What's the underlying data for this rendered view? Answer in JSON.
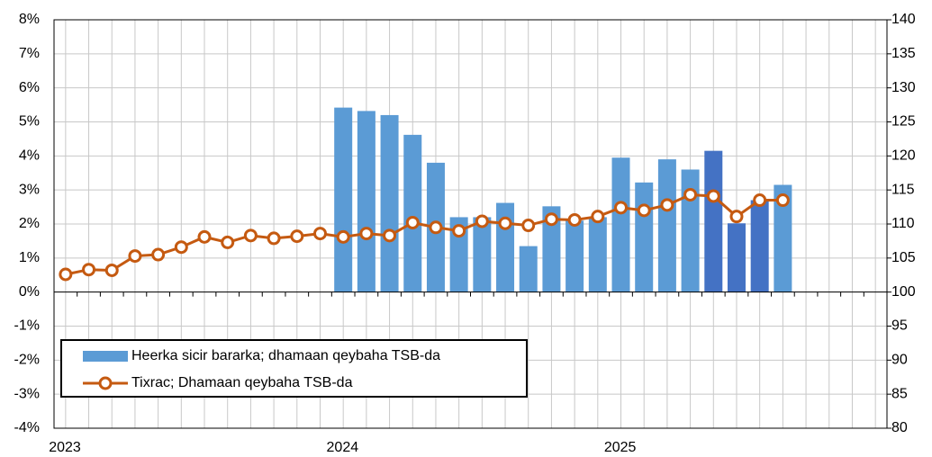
{
  "chart_data": {
    "type": "bar_line",
    "categories": [
      "2023",
      null,
      null,
      null,
      null,
      null,
      null,
      null,
      null,
      null,
      null,
      null,
      "2024",
      null,
      null,
      null,
      null,
      null,
      null,
      null,
      null,
      null,
      null,
      null,
      "2025",
      null,
      null,
      null,
      null,
      null,
      null,
      null,
      null,
      null,
      null,
      null
    ],
    "series": [
      {
        "name": "Heerka sicir bararka; dhamaan qeybaha TSB-da",
        "type": "bar",
        "axis": "y",
        "color": "#5b9bd5",
        "colors": [
          null,
          null,
          null,
          null,
          null,
          null,
          null,
          null,
          null,
          null,
          null,
          null,
          "#5b9bd5",
          "#5b9bd5",
          "#5b9bd5",
          "#5b9bd5",
          "#5b9bd5",
          "#5b9bd5",
          "#5b9bd5",
          "#5b9bd5",
          "#5b9bd5",
          "#5b9bd5",
          "#5b9bd5",
          "#5b9bd5",
          "#5b9bd5",
          "#5b9bd5",
          "#5b9bd5",
          "#5b9bd5",
          "#4472c4",
          "#4472c4",
          "#4472c4",
          "#5b9bd5",
          null,
          null,
          null,
          null
        ],
        "values": [
          null,
          null,
          null,
          null,
          null,
          null,
          null,
          null,
          null,
          null,
          null,
          null,
          5.42,
          5.32,
          5.2,
          4.62,
          3.8,
          2.2,
          2.2,
          2.62,
          1.35,
          2.52,
          2.1,
          2.2,
          3.95,
          3.22,
          3.9,
          3.6,
          4.15,
          2.02,
          2.7,
          3.15,
          null,
          null,
          null,
          null
        ]
      },
      {
        "name": "Tixrac; Dhamaan qeybaha TSB-da",
        "type": "line",
        "axis": "y2",
        "color": "#c55a11",
        "values": [
          102.6,
          103.3,
          103.2,
          105.3,
          105.5,
          106.6,
          108.1,
          107.3,
          108.3,
          107.9,
          108.2,
          108.6,
          108.1,
          108.6,
          108.3,
          110.2,
          109.5,
          109.0,
          110.4,
          110.1,
          109.8,
          110.7,
          110.6,
          111.1,
          112.4,
          112.0,
          112.8,
          114.3,
          114.1,
          111.1,
          113.5,
          113.5,
          null,
          null,
          null,
          null
        ]
      }
    ],
    "ylim": [
      -4,
      8
    ],
    "yticks": [
      {
        "value": -4,
        "label": "-4%"
      },
      {
        "value": -3,
        "label": "-3%"
      },
      {
        "value": -2,
        "label": "-2%"
      },
      {
        "value": -1,
        "label": "-1%"
      },
      {
        "value": 0,
        "label": "0%"
      },
      {
        "value": 1,
        "label": "1%"
      },
      {
        "value": 2,
        "label": "2%"
      },
      {
        "value": 3,
        "label": "3%"
      },
      {
        "value": 4,
        "label": "4%"
      },
      {
        "value": 5,
        "label": "5%"
      },
      {
        "value": 6,
        "label": "6%"
      },
      {
        "value": 7,
        "label": "7%"
      },
      {
        "value": 8,
        "label": "8%"
      }
    ],
    "y2lim": [
      80,
      140
    ],
    "y2ticks": [
      80,
      85,
      90,
      95,
      100,
      105,
      110,
      115,
      120,
      125,
      130,
      135,
      140
    ],
    "grid": true,
    "legend": "lower left"
  }
}
